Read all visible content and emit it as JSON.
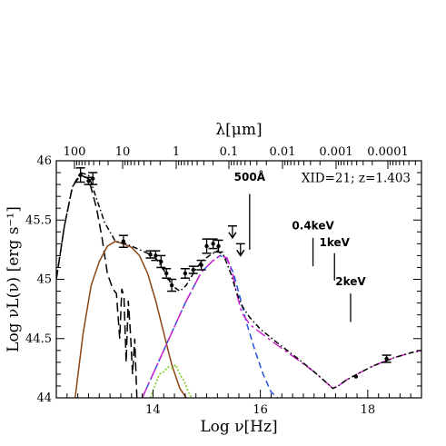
{
  "chart_data": {
    "type": "line",
    "title": "",
    "xlabel": "Log ν[Hz]",
    "ylabel": "Log νL(ν) [erg s⁻¹]",
    "top_axis_label": "λ[μm]",
    "xlim": [
      12.2,
      19.0
    ],
    "ylim": [
      44.0,
      46.0
    ],
    "grid": false,
    "x_major_ticks": [
      {
        "value": 14,
        "label": "14"
      },
      {
        "value": 16,
        "label": "16"
      },
      {
        "value": 18,
        "label": "18"
      }
    ],
    "y_major_ticks": [
      {
        "value": 44,
        "label": "44"
      },
      {
        "value": 44.5,
        "label": "44.5"
      },
      {
        "value": 45,
        "label": "45"
      },
      {
        "value": 45.5,
        "label": "45.5"
      },
      {
        "value": 46,
        "label": "46"
      }
    ],
    "top_ticks_micron": [
      {
        "value": 100,
        "label": "100"
      },
      {
        "value": 10,
        "label": "10"
      },
      {
        "value": 1,
        "label": "1"
      },
      {
        "value": 0.1,
        "label": "0.1"
      },
      {
        "value": 0.01,
        "label": "0.01"
      },
      {
        "value": 0.001,
        "label": "0.001"
      },
      {
        "value": 0.0001,
        "label": "0.0001"
      }
    ],
    "info_text": "XID=21; z=1.403",
    "annotations": [
      {
        "label": "500Å",
        "x": 15.8,
        "y_text": 45.83,
        "y_line_top": 45.72,
        "y_line_bottom": 45.25
      },
      {
        "label": "0.4keV",
        "x": 16.98,
        "y_text": 45.42,
        "y_line_top": 45.35,
        "y_line_bottom": 45.11
      },
      {
        "label": "1keV",
        "x": 17.38,
        "y_text": 45.28,
        "y_line_top": 45.22,
        "y_line_bottom": 44.99
      },
      {
        "label": "2keV",
        "x": 17.68,
        "y_text": 44.95,
        "y_line_top": 44.88,
        "y_line_bottom": 44.64
      }
    ],
    "series": [
      {
        "key": "torus",
        "color": "#000000",
        "dash": "10,5",
        "x": [
          12.2,
          12.35,
          12.5,
          12.65,
          12.8,
          12.95,
          13.05,
          13.15,
          13.25,
          13.32,
          13.38,
          13.42,
          13.46,
          13.5,
          13.54,
          13.58,
          13.62,
          13.66,
          13.7
        ],
        "y": [
          45.0,
          45.45,
          45.78,
          45.88,
          45.85,
          45.6,
          45.35,
          45.05,
          44.92,
          44.88,
          44.5,
          44.92,
          44.85,
          44.3,
          44.82,
          44.55,
          44.2,
          44.5,
          44.0
        ]
      },
      {
        "key": "host-galaxy",
        "color": "#8b4513",
        "dash": "",
        "x": [
          12.55,
          12.7,
          12.85,
          13.0,
          13.15,
          13.3,
          13.45,
          13.6,
          13.75,
          13.9,
          14.05,
          14.2,
          14.35,
          14.5,
          14.62
        ],
        "y": [
          44.0,
          44.55,
          44.95,
          45.15,
          45.28,
          45.32,
          45.3,
          45.27,
          45.2,
          45.05,
          44.82,
          44.55,
          44.28,
          44.08,
          44.0
        ]
      },
      {
        "key": "starburst",
        "color": "#7ccd1a",
        "dash": "2,2",
        "x": [
          13.95,
          14.05,
          14.12,
          14.2,
          14.28,
          14.35,
          14.42,
          14.5,
          14.58,
          14.65,
          14.72
        ],
        "y": [
          44.0,
          44.12,
          44.2,
          44.22,
          44.26,
          44.25,
          44.28,
          44.2,
          44.14,
          44.06,
          44.0
        ]
      },
      {
        "key": "accretion-disk",
        "color": "#2255dd",
        "dash": "7,4",
        "x": [
          13.8,
          14.2,
          14.6,
          14.9,
          15.1,
          15.25,
          15.38,
          15.5,
          15.62,
          15.75,
          15.9,
          16.05,
          16.2,
          16.32
        ],
        "y": [
          44.0,
          44.4,
          44.8,
          45.06,
          45.15,
          45.2,
          45.17,
          45.05,
          44.85,
          44.62,
          44.4,
          44.2,
          44.05,
          44.0
        ]
      },
      {
        "key": "disk-corona",
        "color": "#cc22cc",
        "dash": "12,4,3,4",
        "x": [
          13.8,
          14.2,
          14.6,
          14.9,
          15.1,
          15.25,
          15.38,
          15.48,
          15.56,
          15.65,
          15.8,
          16.0,
          16.3,
          16.7,
          17.0,
          17.2,
          17.35,
          17.45,
          17.6,
          17.8,
          18.1,
          18.5,
          18.8,
          19.0
        ],
        "y": [
          44.0,
          44.4,
          44.8,
          45.06,
          45.15,
          45.2,
          45.18,
          45.05,
          44.88,
          44.72,
          44.62,
          44.55,
          44.45,
          44.32,
          44.22,
          44.14,
          44.08,
          44.1,
          44.15,
          44.2,
          44.27,
          44.34,
          44.38,
          44.4
        ]
      },
      {
        "key": "total-model",
        "color": "#000000",
        "dash": "6,3,1.5,3",
        "x": [
          12.2,
          12.35,
          12.5,
          12.65,
          12.8,
          12.95,
          13.1,
          13.3,
          13.5,
          13.7,
          13.9,
          14.05,
          14.2,
          14.35,
          14.5,
          14.62,
          14.75,
          14.9,
          15.05,
          15.2,
          15.32,
          15.45,
          15.55,
          15.65,
          15.8,
          16.0,
          16.3,
          16.7,
          17.0,
          17.2,
          17.35,
          17.45,
          17.6,
          17.8,
          18.1,
          18.5,
          18.8,
          19.0
        ],
        "y": [
          45.0,
          45.45,
          45.78,
          45.9,
          45.88,
          45.68,
          45.48,
          45.32,
          45.3,
          45.26,
          45.22,
          45.18,
          45.08,
          44.95,
          44.9,
          44.95,
          45.05,
          45.15,
          45.2,
          45.24,
          45.2,
          45.05,
          44.9,
          44.78,
          44.68,
          44.58,
          44.47,
          44.33,
          44.22,
          44.14,
          44.08,
          44.1,
          44.15,
          44.2,
          44.27,
          44.34,
          44.38,
          44.4
        ]
      }
    ],
    "data_points": [
      {
        "x": 12.65,
        "y": 45.88,
        "err": 0.06
      },
      {
        "x": 12.88,
        "y": 45.85,
        "err": 0.05
      },
      {
        "x": 12.8,
        "y": 45.83,
        "err": 0.03
      },
      {
        "x": 13.45,
        "y": 45.32,
        "err": 0.05
      },
      {
        "x": 13.95,
        "y": 45.21,
        "err": 0.03
      },
      {
        "x": 14.05,
        "y": 45.2,
        "err": 0.04
      },
      {
        "x": 14.15,
        "y": 45.15,
        "err": 0.05
      },
      {
        "x": 14.25,
        "y": 45.05,
        "err": 0.04
      },
      {
        "x": 14.35,
        "y": 44.95,
        "err": 0.05
      },
      {
        "x": 14.6,
        "y": 45.05,
        "err": 0.04
      },
      {
        "x": 14.75,
        "y": 45.08,
        "err": 0.03
      },
      {
        "x": 14.9,
        "y": 45.12,
        "err": 0.04
      },
      {
        "x": 15.0,
        "y": 45.28,
        "err": 0.06
      },
      {
        "x": 15.12,
        "y": 45.3,
        "err": 0.04
      },
      {
        "x": 15.22,
        "y": 45.28,
        "err": 0.05
      },
      {
        "x": 17.78,
        "y": 44.18,
        "err": 0.0
      },
      {
        "x": 18.35,
        "y": 44.33,
        "err": 0.03
      }
    ],
    "upper_limits": [
      {
        "x": 15.48,
        "y": 45.45
      },
      {
        "x": 15.63,
        "y": 45.3
      }
    ]
  }
}
